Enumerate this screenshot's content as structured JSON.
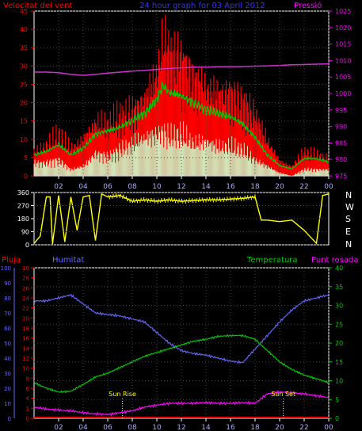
{
  "header": {
    "wind_title": "Velocitat del vent",
    "graph_title": "24 hour graph for  03 April 2012",
    "pressure_title": "Pressió"
  },
  "direction_labels": [
    "N",
    "W",
    "S",
    "E",
    "N"
  ],
  "bottom_headers": {
    "rain": "Pluja",
    "humidity": "Humitat",
    "temperature": "Temperatura",
    "dewpoint": "Punt rosada"
  },
  "events": {
    "sunrise": "Sun Rise",
    "sunset": "Sun Set"
  },
  "colors": {
    "wind": "#ff0000",
    "wind_avg": "#00cc00",
    "wind_min": "#ccffcc",
    "pressure": "#cc33cc",
    "direction": "#ffff00",
    "humidity": "#6666ff",
    "temperature": "#00cc00",
    "dewpoint": "#ff00ff",
    "rain": "#ff0000",
    "axis_left": "#ff0000",
    "axis_right": "#ff00ff",
    "axis_humidity": "#6666ff",
    "axis_temp": "#00cc00",
    "x_ticks": "#aaaaff"
  },
  "chart_data": [
    {
      "type": "area",
      "name": "wind_pressure",
      "x_tick_labels": [
        "02",
        "04",
        "06",
        "08",
        "10",
        "12",
        "14",
        "16",
        "18",
        "20",
        "22",
        "00"
      ],
      "x_range_hours": [
        0,
        24
      ],
      "y_left_ticks": [
        0,
        5,
        10,
        15,
        20,
        25,
        30,
        35,
        40,
        45
      ],
      "y_left_range": [
        0,
        45
      ],
      "y_right_ticks": [
        975,
        980,
        985,
        990,
        995,
        1000,
        1005,
        1010,
        1015,
        1020,
        1025
      ],
      "y_right_range": [
        975,
        1025
      ],
      "hours": [
        0.0,
        1.0,
        2.0,
        3.0,
        4.0,
        5.0,
        6.0,
        7.0,
        8.0,
        9.0,
        10.0,
        10.5,
        11.0,
        12.0,
        13.0,
        14.0,
        15.0,
        16.0,
        17.0,
        18.0,
        19.0,
        20.0,
        21.0,
        22.0,
        23.0,
        24.0
      ],
      "series": [
        {
          "key": "gust",
          "values": [
            8,
            10,
            14,
            9,
            12,
            18,
            17,
            20,
            22,
            26,
            35,
            45,
            42,
            38,
            33,
            30,
            28,
            28,
            25,
            20,
            12,
            5,
            3,
            8,
            7,
            6
          ]
        },
        {
          "key": "average",
          "values": [
            6,
            7,
            9,
            6,
            8,
            12,
            13,
            14,
            16,
            18,
            22,
            26,
            24,
            23,
            21,
            19,
            18,
            17,
            15,
            11,
            6,
            3,
            2,
            5,
            5,
            4
          ]
        },
        {
          "key": "minimum",
          "values": [
            4,
            4,
            5,
            2,
            3,
            7,
            6,
            8,
            10,
            12,
            13,
            14,
            12,
            13,
            10,
            11,
            9,
            9,
            8,
            5,
            3,
            1,
            0,
            2,
            2,
            2
          ]
        },
        {
          "key": "pressure",
          "values": [
            1006.5,
            1006.5,
            1006.3,
            1005.8,
            1005.5,
            1005.8,
            1006.2,
            1006.5,
            1006.8,
            1007.0,
            1007.3,
            1007.5,
            1007.6,
            1007.8,
            1008.0,
            1008.0,
            1008.1,
            1008.1,
            1008.2,
            1008.3,
            1008.4,
            1008.5,
            1008.7,
            1008.8,
            1008.9,
            1009.0
          ]
        }
      ]
    },
    {
      "type": "line",
      "name": "wind_direction",
      "y_ticks": [
        0,
        90,
        180,
        270,
        360
      ],
      "y_range": [
        0,
        360
      ],
      "hours": [
        0.0,
        0.5,
        1.0,
        1.3,
        1.5,
        2.0,
        2.5,
        3.0,
        3.5,
        4.0,
        4.5,
        5.0,
        5.5,
        6.0,
        7.0,
        8.0,
        9.0,
        10.0,
        11.0,
        12.0,
        13.0,
        14.0,
        15.0,
        16.0,
        17.0,
        18.0,
        18.5,
        19.0,
        20.0,
        21.0,
        22.0,
        23.0,
        23.5,
        24.0
      ],
      "series": [
        {
          "key": "direction",
          "values": [
            10,
            60,
            330,
            330,
            5,
            340,
            20,
            330,
            100,
            330,
            340,
            30,
            350,
            330,
            340,
            300,
            310,
            300,
            310,
            300,
            305,
            310,
            310,
            315,
            320,
            330,
            170,
            170,
            160,
            170,
            100,
            10,
            340,
            350
          ]
        }
      ]
    },
    {
      "type": "line",
      "name": "humidity_temperature",
      "x_tick_labels": [
        "02",
        "04",
        "06",
        "08",
        "10",
        "12",
        "14",
        "16",
        "18",
        "20",
        "22",
        "00"
      ],
      "x_range_hours": [
        0,
        24
      ],
      "y_rain_ticks": [
        0,
        2,
        4,
        6,
        8,
        10,
        12,
        14,
        16,
        18,
        20,
        22,
        24,
        26,
        28,
        30
      ],
      "y_rain_range": [
        0,
        30
      ],
      "y_humidity_ticks": [
        0,
        10,
        20,
        30,
        40,
        50,
        60,
        70,
        80,
        90,
        100
      ],
      "y_humidity_range": [
        0,
        100
      ],
      "y_temp_ticks": [
        0,
        5,
        10,
        15,
        20,
        25,
        30,
        35,
        40
      ],
      "y_temp_range": [
        0,
        40
      ],
      "hours": [
        0.0,
        1.0,
        2.0,
        3.0,
        4.0,
        5.0,
        6.0,
        7.0,
        8.0,
        9.0,
        10.0,
        11.0,
        12.0,
        13.0,
        14.0,
        15.0,
        16.0,
        17.0,
        18.0,
        19.0,
        20.0,
        21.0,
        22.0,
        23.0,
        24.0
      ],
      "series": [
        {
          "key": "humidity",
          "values": [
            78,
            78,
            80,
            82,
            76,
            70,
            69,
            68,
            66,
            64,
            57,
            50,
            45,
            43,
            42,
            40,
            38,
            37,
            46,
            55,
            64,
            72,
            78,
            80,
            82
          ]
        },
        {
          "key": "temperature",
          "values": [
            9.5,
            8.0,
            7.0,
            7.2,
            9.0,
            11.0,
            12.0,
            13.5,
            15.0,
            16.5,
            17.5,
            18.5,
            19.5,
            20.5,
            21.0,
            21.8,
            22.0,
            22.0,
            21.0,
            18.0,
            15.0,
            13.0,
            11.5,
            10.5,
            9.5
          ]
        },
        {
          "key": "dewpoint",
          "values": [
            3.0,
            2.5,
            2.2,
            2.0,
            1.5,
            1.2,
            1.0,
            1.5,
            2.0,
            3.0,
            3.5,
            4.0,
            4.0,
            4.0,
            4.2,
            4.0,
            4.0,
            4.2,
            4.0,
            6.5,
            7.0,
            6.8,
            6.5,
            6.0,
            5.5
          ]
        },
        {
          "key": "rain",
          "values": [
            0,
            0,
            0,
            0,
            0,
            0,
            0,
            0,
            0,
            0,
            0,
            0,
            0,
            0,
            0,
            0,
            0,
            0,
            0,
            0,
            0,
            0,
            0,
            0,
            0
          ]
        }
      ],
      "events": [
        {
          "key": "sunrise",
          "hour": 7.2
        },
        {
          "key": "sunset",
          "hour": 20.3
        }
      ]
    }
  ]
}
